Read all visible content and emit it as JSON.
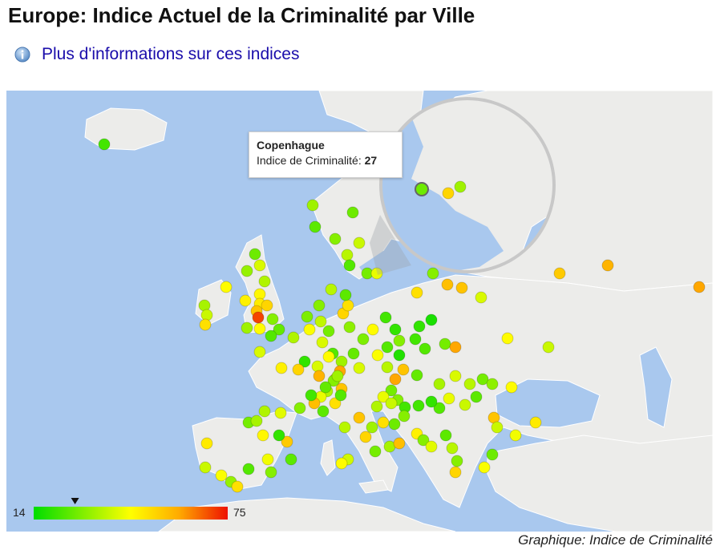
{
  "title": "Europe: Indice Actuel de la Criminalité par Ville",
  "info_link": "Plus d'informations sur ces indices",
  "credit": "Graphique: Indice de Criminalité",
  "tooltip": {
    "city": "Copenhague",
    "metric_label": "Indice de Criminalité:",
    "value": "27"
  },
  "legend": {
    "min": "14",
    "max": "75",
    "min_value": 14,
    "max_value": 75,
    "marker_value": 27
  },
  "colors": {
    "sea": "#a9c8ee",
    "land": "#ececea",
    "border": "#ffffff",
    "low": "#00dd00",
    "mid": "#ffff00",
    "high": "#ee1100"
  },
  "cities": [
    {
      "index": 22
    },
    {
      "index": 33
    },
    {
      "index": 27
    },
    {
      "index": 25
    },
    {
      "index": 30
    },
    {
      "index": 38
    },
    {
      "index": 36
    },
    {
      "index": 24
    },
    {
      "index": 28
    },
    {
      "index": 42
    },
    {
      "index": 27
    },
    {
      "index": 40
    },
    {
      "index": 32
    },
    {
      "index": 45
    },
    {
      "index": 35
    },
    {
      "index": 46
    },
    {
      "index": 48
    },
    {
      "index": 52
    },
    {
      "index": 55
    },
    {
      "index": 70
    },
    {
      "index": 45
    },
    {
      "index": 33
    },
    {
      "index": 47
    },
    {
      "index": 34
    },
    {
      "index": 38
    },
    {
      "index": 50
    },
    {
      "index": 30
    },
    {
      "index": 26
    },
    {
      "index": 24
    },
    {
      "index": 35
    },
    {
      "index": 29
    },
    {
      "index": 44
    },
    {
      "index": 30
    },
    {
      "index": 37
    },
    {
      "index": 28
    },
    {
      "index": 52
    },
    {
      "index": 31
    },
    {
      "index": 50
    },
    {
      "index": 36
    },
    {
      "index": 25
    },
    {
      "index": 40
    },
    {
      "index": 24
    },
    {
      "index": 33
    },
    {
      "index": 26
    },
    {
      "index": 29
    },
    {
      "index": 45
    },
    {
      "index": 22
    },
    {
      "index": 20
    },
    {
      "index": 30
    },
    {
      "index": 24
    },
    {
      "index": 18
    },
    {
      "index": 22
    },
    {
      "index": 20
    },
    {
      "index": 17
    },
    {
      "index": 24
    },
    {
      "index": 28
    },
    {
      "index": 60
    },
    {
      "index": 56
    },
    {
      "index": 55
    },
    {
      "index": 40
    },
    {
      "index": 45
    },
    {
      "index": 38
    },
    {
      "index": 54
    },
    {
      "index": 58
    },
    {
      "index": 60
    },
    {
      "index": 30
    },
    {
      "index": 50
    },
    {
      "index": 20
    },
    {
      "index": 40
    },
    {
      "index": 45
    },
    {
      "index": 60
    },
    {
      "index": 48
    },
    {
      "index": 55
    },
    {
      "index": 30
    },
    {
      "index": 35
    },
    {
      "index": 42
    },
    {
      "index": 56
    },
    {
      "index": 25
    },
    {
      "index": 50
    },
    {
      "index": 24
    },
    {
      "index": 33
    },
    {
      "index": 40
    },
    {
      "index": 44
    },
    {
      "index": 36
    },
    {
      "index": 55
    },
    {
      "index": 60
    },
    {
      "index": 28
    },
    {
      "index": 30
    },
    {
      "index": 42
    },
    {
      "index": 35
    },
    {
      "index": 38
    },
    {
      "index": 22
    },
    {
      "index": 26
    },
    {
      "index": 34
    },
    {
      "index": 40
    },
    {
      "index": 36
    },
    {
      "index": 28
    },
    {
      "index": 31
    },
    {
      "index": 45
    },
    {
      "index": 25
    },
    {
      "index": 38
    },
    {
      "index": 42
    },
    {
      "index": 24
    },
    {
      "index": 20
    },
    {
      "index": 22
    },
    {
      "index": 30
    },
    {
      "index": 27
    },
    {
      "index": 50
    },
    {
      "index": 33
    },
    {
      "index": 55
    },
    {
      "index": 36
    },
    {
      "index": 40
    },
    {
      "index": 47
    },
    {
      "index": 52
    },
    {
      "index": 58
    },
    {
      "index": 26
    },
    {
      "index": 22
    },
    {
      "index": 30
    },
    {
      "index": 41
    },
    {
      "index": 35
    },
    {
      "index": 28
    },
    {
      "index": 34
    },
    {
      "index": 46
    },
    {
      "index": 54
    },
    {
      "index": 43
    },
    {
      "index": 30
    },
    {
      "index": 25
    },
    {
      "index": 48
    },
    {
      "index": 38
    },
    {
      "index": 44
    },
    {
      "index": 32
    },
    {
      "index": 50
    },
    {
      "index": 24
    },
    {
      "index": 20
    },
    {
      "index": 39
    },
    {
      "index": 45
    },
    {
      "index": 52
    },
    {
      "index": 28
    },
    {
      "index": 34
    },
    {
      "index": 56
    },
    {
      "index": 47
    },
    {
      "index": 30
    },
    {
      "index": 41
    },
    {
      "index": 25
    },
    {
      "index": 36
    },
    {
      "index": 52
    },
    {
      "index": 30
    },
    {
      "index": 44
    },
    {
      "index": 27
    },
    {
      "index": 55
    },
    {
      "index": 38
    },
    {
      "index": 43
    },
    {
      "index": 48
    }
  ],
  "zoom_cities": [
    {
      "index": 27
    },
    {
      "index": 33
    },
    {
      "index": 52
    }
  ]
}
